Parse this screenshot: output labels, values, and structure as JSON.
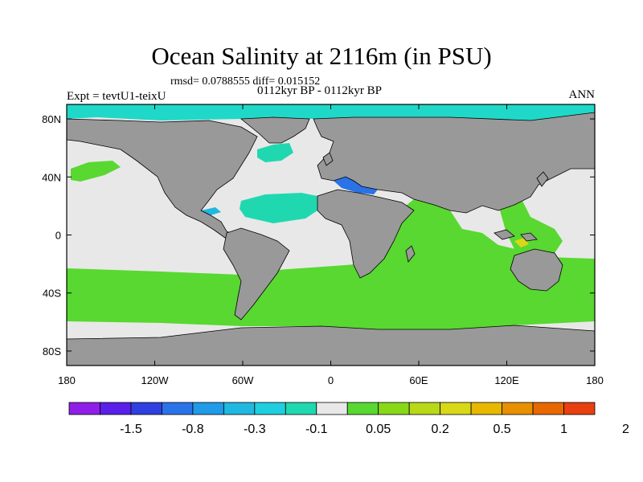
{
  "figure": {
    "title": "Ocean Salinity at 2116m (in PSU)",
    "stats_line": "rmsd= 0.0788555 diff= 0.015152",
    "period_line": "0112kyr BP - 0112kyr BP",
    "experiment_label": "Expt = tevtU1-teixU",
    "season_label": "ANN"
  },
  "map": {
    "projection": "cylindrical-equidistant",
    "lon_range": [
      -180,
      180
    ],
    "lat_range": [
      -90,
      90
    ],
    "lon_ticks": [
      {
        "value": -180,
        "label": "180"
      },
      {
        "value": -120,
        "label": "120W"
      },
      {
        "value": -60,
        "label": "60W"
      },
      {
        "value": 0,
        "label": "0"
      },
      {
        "value": 60,
        "label": "60E"
      },
      {
        "value": 120,
        "label": "120E"
      },
      {
        "value": 180,
        "label": "180"
      }
    ],
    "lat_ticks": [
      {
        "value": 80,
        "label": "80N"
      },
      {
        "value": 40,
        "label": "40N"
      },
      {
        "value": 0,
        "label": "0"
      },
      {
        "value": -40,
        "label": "40S"
      },
      {
        "value": -80,
        "label": "80S"
      }
    ],
    "colors": {
      "land": "#999999",
      "neutral_ocean": "#e8e8e8",
      "coast": "#000000"
    }
  },
  "colorbar": {
    "colors": [
      "#8f1fe8",
      "#5a1fe8",
      "#2f3fe0",
      "#2a72e8",
      "#1f9be8",
      "#1fb8e0",
      "#1fcfe0",
      "#20d8b0",
      "#e8e8e8",
      "#58d830",
      "#88d818",
      "#b8d818",
      "#d8d818",
      "#e8b800",
      "#e89000",
      "#e86800",
      "#e84010"
    ],
    "labels": [
      "-1.5",
      "-0.8",
      "-0.3",
      "-0.1",
      "0.05",
      "0.2",
      "0.5",
      "1",
      "2"
    ]
  }
}
